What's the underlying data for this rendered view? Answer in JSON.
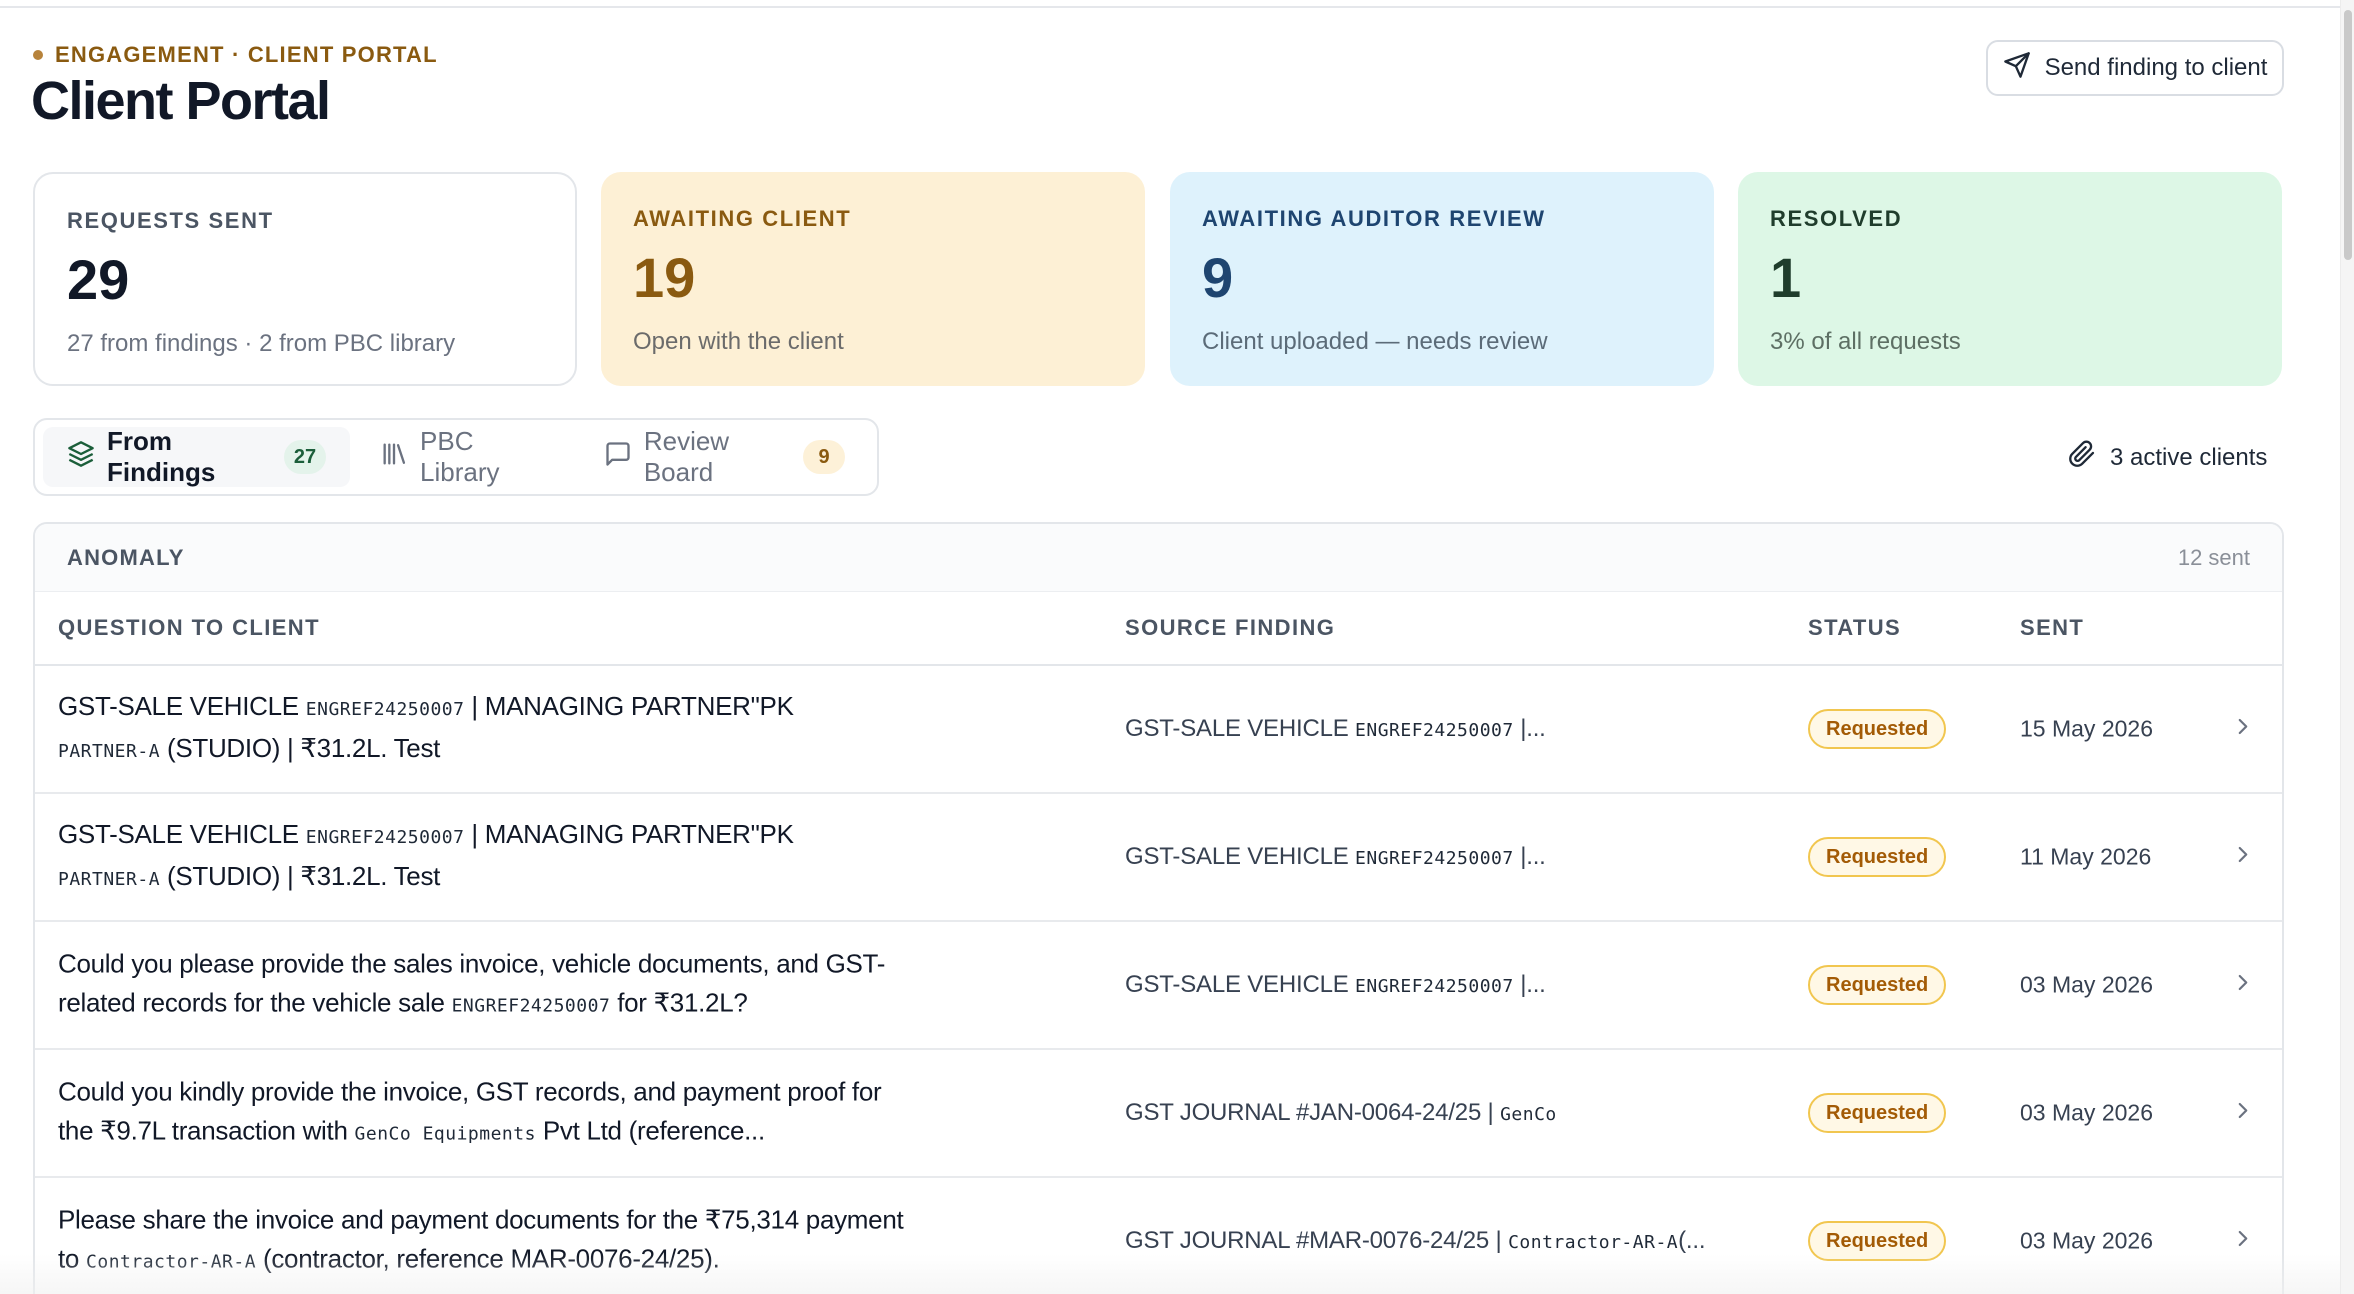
{
  "header": {
    "eyebrow": "ENGAGEMENT · CLIENT PORTAL",
    "title": "Client Portal",
    "send_button": "Send finding to client"
  },
  "stats": [
    {
      "label": "REQUESTS SENT",
      "value": "29",
      "sub": "27 from findings · 2 from PBC library"
    },
    {
      "label": "AWAITING CLIENT",
      "value": "19",
      "sub": "Open with the client"
    },
    {
      "label": "AWAITING AUDITOR REVIEW",
      "value": "9",
      "sub": "Client uploaded — needs review"
    },
    {
      "label": "RESOLVED",
      "value": "1",
      "sub": "3% of all requests"
    }
  ],
  "tabs": [
    {
      "label": "From Findings",
      "count": "27",
      "icon": "layers-icon"
    },
    {
      "label": "PBC Library",
      "icon": "library-icon"
    },
    {
      "label": "Review Board",
      "count": "9",
      "icon": "message-square-icon"
    }
  ],
  "active_clients": "3 active clients",
  "group": {
    "name": "ANOMALY",
    "count": "12 sent"
  },
  "columns": {
    "question": "QUESTION TO CLIENT",
    "source": "SOURCE FINDING",
    "status": "STATUS",
    "sent": "SENT"
  },
  "rows": [
    {
      "q1": "GST-SALE VEHICLE ",
      "q1_code": "ENGREF24250007",
      "q1_tail": "  |  MANAGING PARTNER\"PK",
      "q2_code": "PARTNER-A",
      "q2_mid": "  (STUDIO)  ",
      "q2_tail": "|  ₹31.2L. Test",
      "src": "GST-SALE VEHICLE ",
      "src_code": "ENGREF24250007",
      "src_tail": "    |...",
      "status": "Requested",
      "sent": "15 May 2026"
    },
    {
      "q1": "GST-SALE VEHICLE ",
      "q1_code": "ENGREF24250007",
      "q1_tail": "  |  MANAGING PARTNER\"PK",
      "q2_code": "PARTNER-A",
      "q2_mid": "  (STUDIO)  ",
      "q2_tail": "|  ₹31.2L. Test",
      "src": "GST-SALE VEHICLE ",
      "src_code": "ENGREF24250007",
      "src_tail": "    |...",
      "status": "Requested",
      "sent": "11 May 2026"
    },
    {
      "q1": "Could you please provide the sales invoice, vehicle documents, and GST-",
      "q2": "related records for the vehicle sale ",
      "q2_code": "ENGREF24250007",
      "q2_tail": "   for ₹31.2L?",
      "src": "GST-SALE VEHICLE ",
      "src_code": "ENGREF24250007",
      "src_tail": "    |...",
      "status": "Requested",
      "sent": "03 May 2026"
    },
    {
      "q1": "Could you kindly provide the invoice, GST records, and payment proof for",
      "q2": "the ₹9.7L transaction with ",
      "q2_code": "GenCo",
      "q2_mid": "   Equipments",
      "q2_tail": "       Pvt Ltd (reference...",
      "src": "GST JOURNAL #JAN-0064-24/25 | ",
      "src_code": "GenCo",
      "src_tail": "",
      "status": "Requested",
      "sent": "03 May 2026"
    },
    {
      "q1": "Please share the invoice and payment documents for the ₹75,314 payment",
      "q2": "to ",
      "q2_code": "Contractor-AR-A",
      "q2_tail": " (contractor, reference MAR-0076-24/25).",
      "src": "GST JOURNAL #MAR-0076-24/25 | ",
      "src_code": "Contractor-AR-A",
      "src_tail": "(...",
      "status": "Requested",
      "sent": "03 May 2026"
    }
  ]
}
